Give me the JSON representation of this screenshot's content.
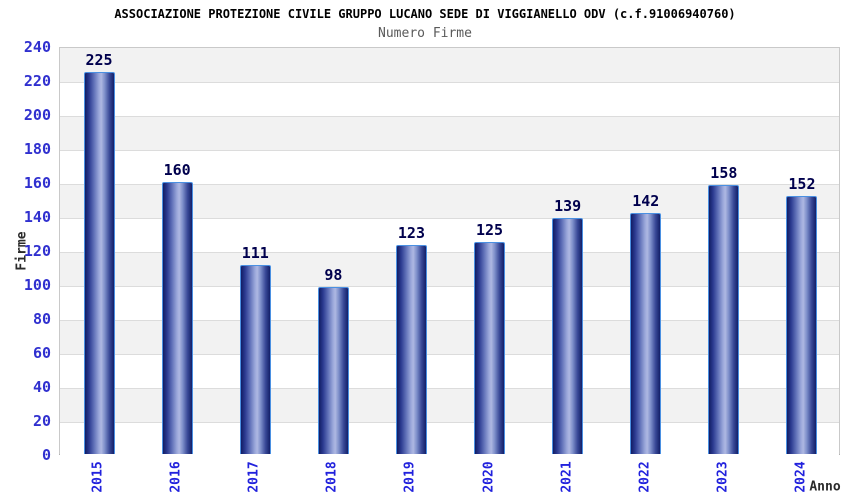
{
  "header": {
    "title": "ASSOCIAZIONE PROTEZIONE CIVILE GRUPPO LUCANO SEDE DI VIGGIANELLO ODV (c.f.91006940760)",
    "subtitle": "Numero Firme"
  },
  "chart_data": {
    "type": "bar",
    "title": "Numero Firme",
    "categories": [
      "2015",
      "2016",
      "2017",
      "2018",
      "2019",
      "2020",
      "2021",
      "2022",
      "2023",
      "2024"
    ],
    "values": [
      225,
      160,
      111,
      98,
      123,
      125,
      139,
      142,
      158,
      152
    ],
    "xlabel": "Anno",
    "ylabel": "Firme",
    "ylim": [
      0,
      240
    ],
    "ytick_step": 20,
    "ytick_labels": [
      "0",
      "20",
      "40",
      "60",
      "80",
      "100",
      "120",
      "140",
      "160",
      "180",
      "200",
      "220",
      "240"
    ],
    "value_labels_shown": true,
    "legend": "none",
    "grid": "horizontal alternating bands every 20 units"
  },
  "colors": {
    "value_label": "#00004d",
    "ytick_label": "#3030cf",
    "xtick_label": "#2222dd",
    "band_gray": "#f2f2f2",
    "band_white": "#ffffff",
    "grid_line": "#dcdcdc",
    "plot_border": "#c9c9c9",
    "axis_line": "#979797",
    "bar_border": "#4a90e2",
    "bar_dark": "#111d64",
    "bar_highlight": "#aeb8e2"
  }
}
